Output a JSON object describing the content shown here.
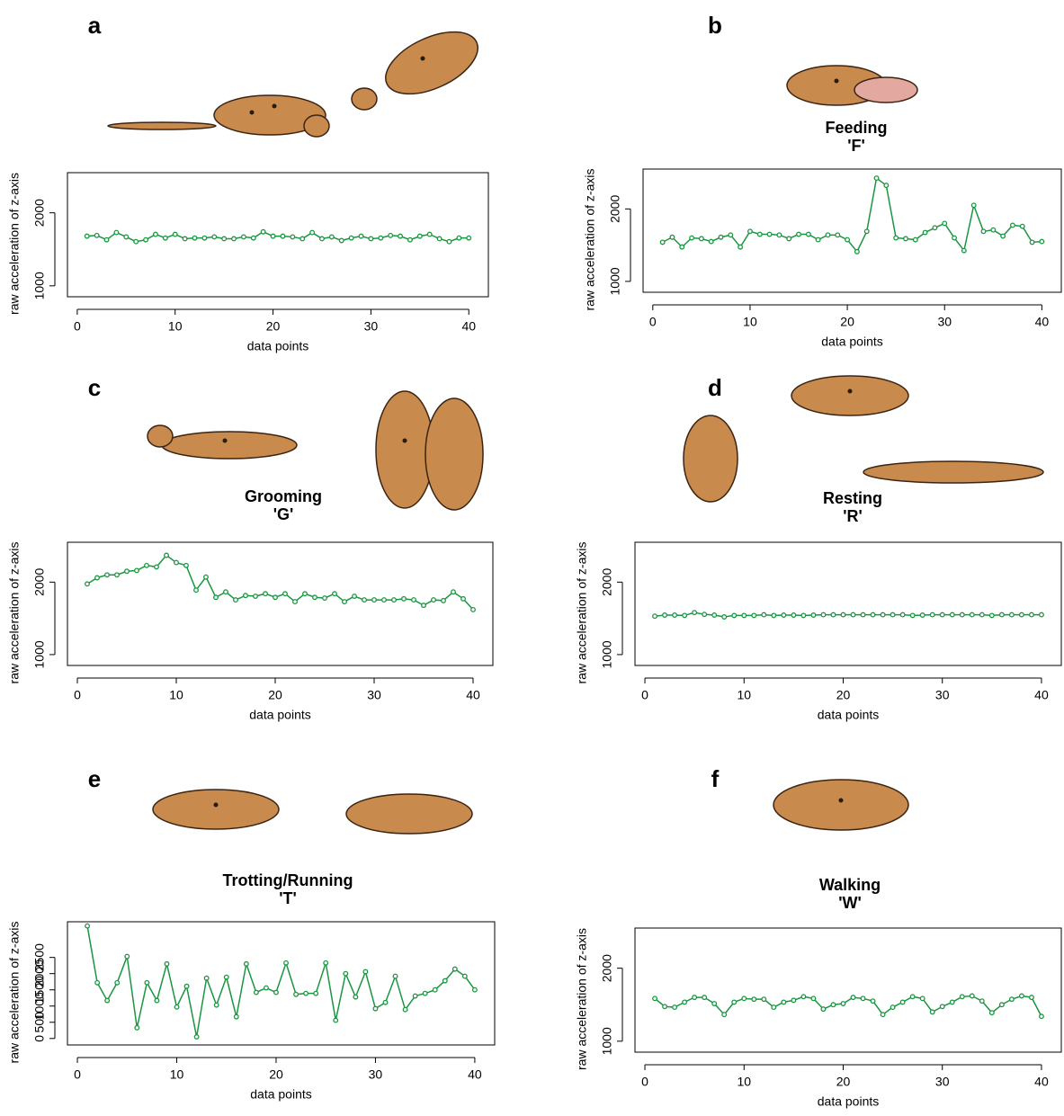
{
  "chart_data": [
    {
      "type": "line",
      "panel": "a",
      "xlabel": "data points",
      "ylabel": "raw acceleration of z-axis",
      "x": [
        1,
        2,
        3,
        4,
        5,
        6,
        7,
        8,
        9,
        10,
        11,
        12,
        13,
        14,
        15,
        16,
        17,
        18,
        19,
        20,
        21,
        22,
        23,
        24,
        25,
        26,
        27,
        28,
        29,
        30,
        31,
        32,
        33,
        34,
        35,
        36,
        37,
        38,
        39,
        40
      ],
      "values": [
        1680,
        1690,
        1630,
        1730,
        1670,
        1605,
        1630,
        1705,
        1655,
        1705,
        1645,
        1655,
        1655,
        1670,
        1645,
        1645,
        1670,
        1655,
        1740,
        1680,
        1680,
        1670,
        1645,
        1730,
        1645,
        1670,
        1620,
        1655,
        1680,
        1645,
        1655,
        1690,
        1680,
        1630,
        1680,
        1705,
        1645,
        1605,
        1655,
        1655
      ],
      "color": "#1a9641",
      "xlim": [
        -1,
        42
      ],
      "ylim": [
        850,
        2550
      ],
      "xticks": [
        0,
        10,
        20,
        30,
        40
      ],
      "yticks": [
        1000,
        2000
      ]
    },
    {
      "type": "line",
      "panel": "b",
      "title": "Feeding",
      "code": "'F'",
      "xlabel": "data points",
      "ylabel": "raw acceleration of z-axis",
      "x": [
        1,
        2,
        3,
        4,
        5,
        6,
        7,
        8,
        9,
        10,
        11,
        12,
        13,
        14,
        15,
        16,
        17,
        18,
        19,
        20,
        21,
        22,
        23,
        24,
        25,
        26,
        27,
        28,
        29,
        30,
        31,
        32,
        33,
        34,
        35,
        36,
        37,
        38,
        39,
        40
      ],
      "values": [
        1540,
        1610,
        1475,
        1600,
        1590,
        1550,
        1610,
        1640,
        1475,
        1690,
        1650,
        1650,
        1640,
        1590,
        1650,
        1650,
        1575,
        1640,
        1640,
        1575,
        1410,
        1690,
        2425,
        2325,
        1600,
        1590,
        1575,
        1675,
        1740,
        1800,
        1600,
        1425,
        2050,
        1690,
        1710,
        1625,
        1775,
        1760,
        1540,
        1550
      ],
      "color": "#1a9641",
      "xlim": [
        -1,
        42
      ],
      "ylim": [
        850,
        2550
      ],
      "xticks": [
        0,
        10,
        20,
        30,
        40
      ],
      "yticks": [
        1000,
        2000
      ]
    },
    {
      "type": "line",
      "panel": "c",
      "title": "Grooming",
      "code": "'G'",
      "xlabel": "data points",
      "ylabel": "raw acceleration of z-axis",
      "x": [
        1,
        2,
        3,
        4,
        5,
        6,
        7,
        8,
        9,
        10,
        11,
        12,
        13,
        14,
        15,
        16,
        17,
        18,
        19,
        20,
        21,
        22,
        23,
        24,
        25,
        26,
        27,
        28,
        29,
        30,
        31,
        32,
        33,
        34,
        35,
        36,
        37,
        38,
        39,
        40
      ],
      "values": [
        1975,
        2060,
        2100,
        2100,
        2150,
        2160,
        2230,
        2210,
        2370,
        2270,
        2230,
        1890,
        2070,
        1790,
        1865,
        1755,
        1815,
        1805,
        1840,
        1790,
        1840,
        1730,
        1840,
        1790,
        1780,
        1840,
        1730,
        1805,
        1755,
        1755,
        1755,
        1755,
        1770,
        1755,
        1680,
        1755,
        1745,
        1865,
        1770,
        1620
      ],
      "color": "#1a9641",
      "xlim": [
        -1,
        42
      ],
      "ylim": [
        850,
        2550
      ],
      "xticks": [
        0,
        10,
        20,
        30,
        40
      ],
      "yticks": [
        1000,
        2000
      ]
    },
    {
      "type": "line",
      "panel": "d",
      "title": "Resting",
      "code": "'R'",
      "xlabel": "data points",
      "ylabel": "raw acceleration of z-axis",
      "x": [
        1,
        2,
        3,
        4,
        5,
        6,
        7,
        8,
        9,
        10,
        11,
        12,
        13,
        14,
        15,
        16,
        17,
        18,
        19,
        20,
        21,
        22,
        23,
        24,
        25,
        26,
        27,
        28,
        29,
        30,
        31,
        32,
        33,
        34,
        35,
        36,
        37,
        38,
        39,
        40
      ],
      "values": [
        1530,
        1545,
        1545,
        1540,
        1580,
        1555,
        1545,
        1520,
        1540,
        1540,
        1540,
        1550,
        1540,
        1545,
        1545,
        1540,
        1545,
        1550,
        1550,
        1550,
        1550,
        1550,
        1550,
        1550,
        1550,
        1550,
        1540,
        1545,
        1550,
        1550,
        1550,
        1550,
        1550,
        1550,
        1540,
        1550,
        1550,
        1550,
        1550,
        1550
      ],
      "color": "#1a9641",
      "xlim": [
        -1,
        42
      ],
      "ylim": [
        850,
        2550
      ],
      "xticks": [
        0,
        10,
        20,
        30,
        40
      ],
      "yticks": [
        1000,
        2000
      ]
    },
    {
      "type": "line",
      "panel": "e",
      "title": "Trotting/Running",
      "code": "'T'",
      "xlabel": "data points",
      "ylabel": "raw acceleration of z-axis",
      "x": [
        1,
        2,
        3,
        4,
        5,
        6,
        7,
        8,
        9,
        10,
        11,
        12,
        13,
        14,
        15,
        16,
        17,
        18,
        19,
        20,
        21,
        22,
        23,
        24,
        25,
        26,
        27,
        28,
        29,
        30,
        31,
        32,
        33,
        34,
        35,
        36,
        37,
        38,
        39,
        40
      ],
      "values": [
        3470,
        1720,
        1170,
        1720,
        2530,
        330,
        1720,
        1170,
        2300,
        970,
        1610,
        50,
        1860,
        1030,
        1890,
        670,
        2300,
        1420,
        1560,
        1420,
        2330,
        1360,
        1390,
        1390,
        2330,
        560,
        2000,
        1280,
        2060,
        920,
        1110,
        1920,
        890,
        1310,
        1390,
        1500,
        1780,
        2140,
        1920,
        1500
      ],
      "color": "#1a9641",
      "xlim": [
        -1,
        42
      ],
      "ylim": [
        -200,
        3600
      ],
      "xticks": [
        0,
        10,
        20,
        30,
        40
      ],
      "yticks": [
        0,
        500,
        1000,
        1500,
        2000,
        2500
      ]
    },
    {
      "type": "line",
      "panel": "f",
      "title": "Walking",
      "code": "'W'",
      "xlabel": "data points",
      "ylabel": "raw acceleration of z-axis",
      "x": [
        1,
        2,
        3,
        4,
        5,
        6,
        7,
        8,
        9,
        10,
        11,
        12,
        13,
        14,
        15,
        16,
        17,
        18,
        19,
        20,
        21,
        22,
        23,
        24,
        25,
        26,
        27,
        28,
        29,
        30,
        31,
        32,
        33,
        34,
        35,
        36,
        37,
        38,
        39,
        40
      ],
      "values": [
        1585,
        1475,
        1465,
        1535,
        1600,
        1600,
        1515,
        1365,
        1535,
        1585,
        1575,
        1575,
        1465,
        1535,
        1560,
        1610,
        1585,
        1440,
        1500,
        1515,
        1600,
        1585,
        1550,
        1365,
        1465,
        1535,
        1610,
        1585,
        1400,
        1475,
        1535,
        1610,
        1620,
        1550,
        1390,
        1500,
        1575,
        1620,
        1600,
        1340
      ],
      "color": "#1a9641",
      "xlim": [
        -1,
        42
      ],
      "ylim": [
        850,
        2550
      ],
      "xticks": [
        0,
        10,
        20,
        30,
        40
      ],
      "yticks": [
        1000,
        2000
      ]
    }
  ]
}
